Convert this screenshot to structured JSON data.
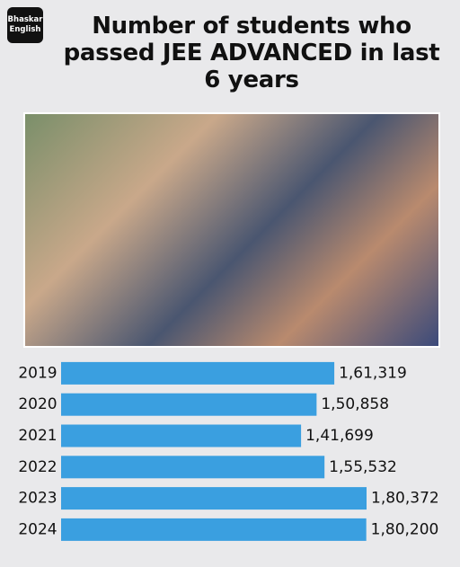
{
  "logo": {
    "line1": "Bhaskar",
    "line2": "English"
  },
  "chart_data": {
    "type": "barh",
    "title": "Number of students who passed JEE ADVANCED in last 6 years",
    "categories": [
      "2019",
      "2020",
      "2021",
      "2022",
      "2023",
      "2024"
    ],
    "values": [
      161319,
      150858,
      141699,
      155532,
      180372,
      180200
    ],
    "value_labels": [
      "1,61,319",
      "1,50,858",
      "1,41,699",
      "1,55,532",
      "1,80,372",
      "1,80,200"
    ],
    "color": "#3a9fe0"
  }
}
